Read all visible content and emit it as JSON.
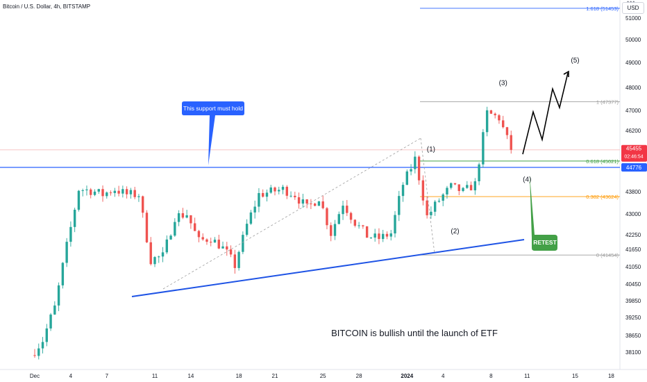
{
  "header": {
    "symbol": "Bitcoin / U.S. Dollar, 4h, BITSTAMP",
    "currency": "USD",
    "menu": "•••"
  },
  "colors": {
    "up": "#26a69a",
    "down": "#ef5350",
    "support": "#2962ff",
    "trendline": "#1e53e5",
    "callout_blue": "#2962ff",
    "callout_green": "#43a047",
    "fib_1618": "#2962ff",
    "fib_1": "#9e9e9e",
    "fib_0618": "#43a047",
    "fib_0382": "#ff9800",
    "fib_0": "#9e9e9e",
    "price_tag": "#f23645"
  },
  "chart_data": {
    "type": "candlestick",
    "title": "Bitcoin / U.S. Dollar, 4h, BITSTAMP",
    "y_ticks": [
      51000,
      50000,
      49000,
      48000,
      47000,
      46200,
      44776,
      43800,
      43000,
      42250,
      41650,
      41050,
      40450,
      39850,
      39250,
      38650,
      38100
    ],
    "x_ticks": [
      "Dec",
      "4",
      "7",
      "11",
      "14",
      "18",
      "21",
      "25",
      "28",
      "2024",
      "4",
      "8",
      "11",
      "15",
      "18"
    ],
    "price_path": [
      {
        "date": "Dec 1",
        "price": 38000
      },
      {
        "date": "Dec 2",
        "price": 38500
      },
      {
        "date": "Dec 3",
        "price": 39600
      },
      {
        "date": "Dec 4",
        "price": 41800
      },
      {
        "date": "Dec 5",
        "price": 43900
      },
      {
        "date": "Dec 6",
        "price": 43850
      },
      {
        "date": "Dec 7",
        "price": 43700
      },
      {
        "date": "Dec 8",
        "price": 43900
      },
      {
        "date": "Dec 9",
        "price": 43700
      },
      {
        "date": "Dec 10",
        "price": 43700
      },
      {
        "date": "Dec 11",
        "price": 41300
      },
      {
        "date": "Dec 12",
        "price": 41400
      },
      {
        "date": "Dec 13",
        "price": 42900
      },
      {
        "date": "Dec 14",
        "price": 43000
      },
      {
        "date": "Dec 15",
        "price": 42000
      },
      {
        "date": "Dec 16",
        "price": 42100
      },
      {
        "date": "Dec 17",
        "price": 41700
      },
      {
        "date": "Dec 18",
        "price": 41100
      },
      {
        "date": "Dec 19",
        "price": 42600
      },
      {
        "date": "Dec 20",
        "price": 43700
      },
      {
        "date": "Dec 21",
        "price": 43800
      },
      {
        "date": "Dec 22",
        "price": 43900
      },
      {
        "date": "Dec 23",
        "price": 43700
      },
      {
        "date": "Dec 24",
        "price": 43200
      },
      {
        "date": "Dec 25",
        "price": 43600
      },
      {
        "date": "Dec 26",
        "price": 42300
      },
      {
        "date": "Dec 27",
        "price": 43400
      },
      {
        "date": "Dec 28",
        "price": 42700
      },
      {
        "date": "Dec 29",
        "price": 42200
      },
      {
        "date": "Dec 30",
        "price": 42100
      },
      {
        "date": "Dec 31",
        "price": 42300
      },
      {
        "date": "Jan 1",
        "price": 44100
      },
      {
        "date": "Jan 2",
        "price": 45100
      },
      {
        "date": "Jan 3",
        "price": 42900
      },
      {
        "date": "Jan 4",
        "price": 43500
      },
      {
        "date": "Jan 5",
        "price": 44000
      },
      {
        "date": "Jan 6",
        "price": 43800
      },
      {
        "date": "Jan 7",
        "price": 44100
      },
      {
        "date": "Jan 8",
        "price": 46900
      },
      {
        "date": "Jan 9",
        "price": 46700
      },
      {
        "date": "Jan 10",
        "price": 45455
      }
    ],
    "support_level": 44776,
    "current_price": 45455,
    "countdown": "02:46:54",
    "price_tag": "45455",
    "support_tag": "44776",
    "fib_levels": [
      {
        "label": "1.618 (51453)",
        "price": 51453
      },
      {
        "label": "1 (47377)",
        "price": 47377
      },
      {
        "label": "0.618 (45021)",
        "price": 45021
      },
      {
        "label": "0.382 (43624)",
        "price": 43624
      },
      {
        "label": "0 (41454)",
        "price": 41454
      }
    ],
    "waves": [
      {
        "label": "(1)",
        "date": "Jan 3",
        "price": 45400
      },
      {
        "label": "(2)",
        "date": "Jan 5",
        "price": 42300
      },
      {
        "label": "(3)",
        "date": "Jan 9",
        "price": 48100
      },
      {
        "label": "(4)",
        "date": "Jan 11",
        "price": 44200
      },
      {
        "label": "(5)",
        "date": "Jan 15",
        "price": 49000
      }
    ],
    "annotations": {
      "support_callout": "This support must hold",
      "retest_callout": "RETEST",
      "caption": "BITCOIN is bullish until the launch of ETF"
    }
  }
}
